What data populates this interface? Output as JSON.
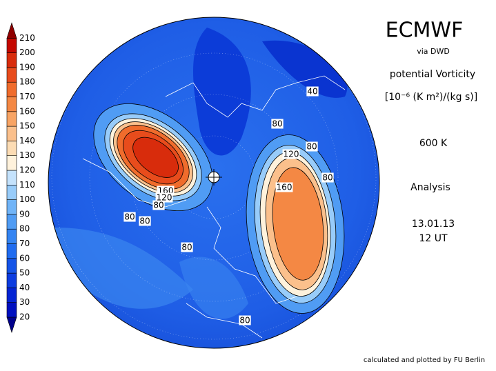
{
  "header": {
    "title": "ECMWF",
    "source": "via DWD",
    "quantity": "potential Vorticity",
    "units": "[10⁻⁶ (K m²)/(kg s)]",
    "level": "600 K",
    "kind": "Analysis",
    "date": "13.01.13",
    "time": "12 UT"
  },
  "footer": "calculated and plotted by FU Berlin",
  "colorbar": {
    "levels": [
      20,
      30,
      40,
      50,
      60,
      70,
      80,
      90,
      100,
      110,
      120,
      130,
      140,
      150,
      160,
      170,
      180,
      190,
      200,
      210
    ],
    "colors": [
      "#00008c",
      "#0010c0",
      "#0424d4",
      "#0c3ce0",
      "#1454e8",
      "#206cf0",
      "#3484f2",
      "#509cf4",
      "#70b4f8",
      "#98ccfa",
      "#c4e2fc",
      "#fff2dc",
      "#fcdcb4",
      "#fbc08c",
      "#f8a464",
      "#f48844",
      "#f06c2c",
      "#e84c1c",
      "#d82c0c",
      "#c40800",
      "#900000"
    ]
  },
  "contour_labels": [
    "40",
    "80",
    "80",
    "120",
    "80",
    "160",
    "160",
    "120",
    "80",
    "80",
    "80",
    "80",
    "80"
  ]
}
